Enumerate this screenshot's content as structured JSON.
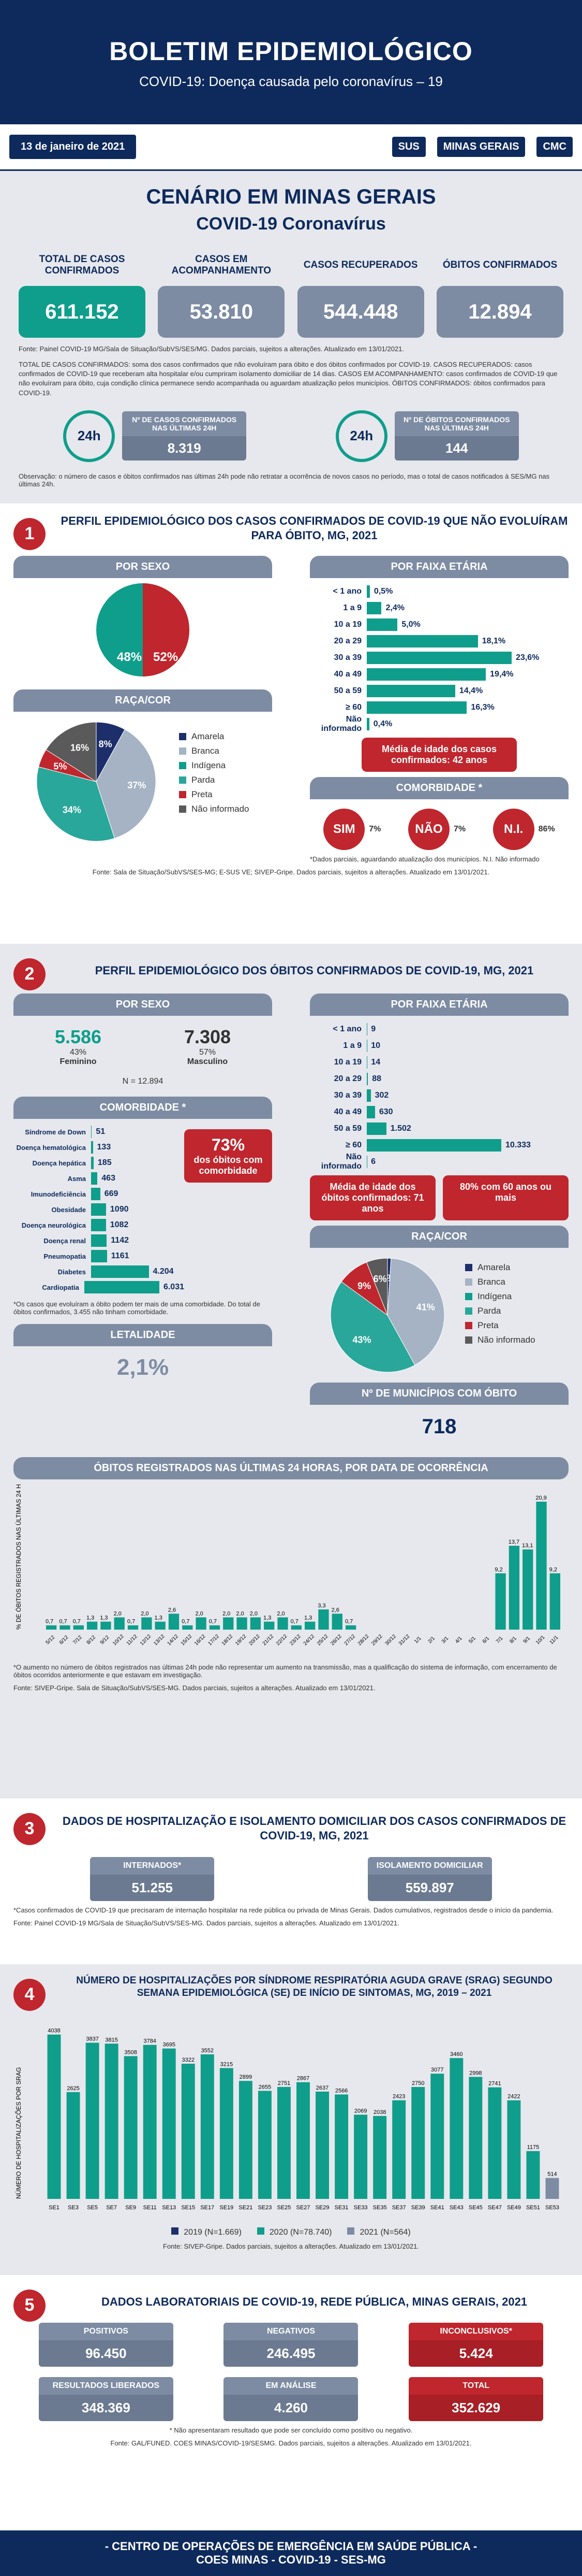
{
  "header": {
    "title": "BOLETIM EPIDEMIOLÓGICO",
    "subtitle": "COVID-19: Doença causada pelo coronavírus – 19"
  },
  "date": "13 de janeiro de 2021",
  "logos": {
    "sus": "SUS",
    "mg": "MINAS GERAIS",
    "cmc": "CMC"
  },
  "intro": {
    "title": "CENÁRIO EM MINAS GERAIS",
    "subtitle": "COVID-19 Coronavírus",
    "kpis": [
      {
        "label": "TOTAL DE CASOS CONFIRMADOS",
        "value": "611.152"
      },
      {
        "label": "CASOS EM ACOMPANHAMENTO",
        "value": "53.810"
      },
      {
        "label": "CASOS RECUPERADOS",
        "value": "544.448"
      },
      {
        "label": "ÓBITOS CONFIRMADOS",
        "value": "12.894"
      }
    ],
    "source": "Fonte: Painel COVID-19 MG/Sala de Situação/SubVS/SES/MG. Dados parciais, sujeitos a alterações. Atualizado em 13/01/2021.",
    "definitions": "TOTAL DE CASOS CONFIRMADOS: soma dos casos confirmados que não evoluíram para óbito e dos óbitos confirmados por COVID-19. CASOS RECUPERADOS: casos confirmados de COVID-19 que receberam alta hospitalar e/ou cumpriram isolamento domiciliar de 14 dias. CASOS EM ACOMPANHAMENTO: casos confirmados de COVID-19 que não evoluíram para óbito, cuja condição clínica permanece sendo acompanhada ou aguardam atualização pelos municípios. ÓBITOS CONFIRMADOS: óbitos confirmados para COVID-19.",
    "last24": [
      {
        "label": "Nº DE CASOS CONFIRMADOS NAS ÚLTIMAS 24H",
        "value": "8.319"
      },
      {
        "label": "Nº DE ÓBITOS CONFIRMADOS NAS ÚLTIMAS 24H",
        "value": "144"
      }
    ],
    "clock": "24h",
    "obs": "Observação: o número de casos e óbitos confirmados nas últimas 24h pode não retratar a ocorrência de novos casos no período, mas o total de casos notificados à SES/MG nas últimas 24h."
  },
  "s1": {
    "num": "1",
    "title": "PERFIL EPIDEMIOLÓGICO DOS CASOS CONFIRMADOS DE COVID-19 QUE NÃO EVOLUÍRAM PARA ÓBITO, MG, 2021",
    "sexo_tab": "POR SEXO",
    "fem": "48%",
    "masc": "52%",
    "faixa_tab": "POR FAIXA ETÁRIA",
    "raca_tab": "RAÇA/COR",
    "media": "Média de idade dos casos confirmados: 42 anos",
    "comorb_tab": "COMORBIDADE *",
    "comorb": [
      {
        "k": "SIM",
        "v": "7%"
      },
      {
        "k": "NÃO",
        "v": "7%"
      },
      {
        "k": "N.I.",
        "v": "86%"
      }
    ],
    "comorb_note": "*Dados parciais, aguardando atualização dos municípios. N.I. Não informado",
    "source": "Fonte: Sala de Situação/SubVS/SES-MG; E-SUS VE; SIVEP-Gripe. Dados parciais, sujeitos a alterações. Atualizado em 13/01/2021."
  },
  "s2": {
    "num": "2",
    "title": "PERFIL EPIDEMIOLÓGICO DOS ÓBITOS CONFIRMADOS DE COVID-19, MG, 2021",
    "sexo_tab": "POR SEXO",
    "fem_n": "5.586",
    "fem_p": "43%",
    "fem_l": "Feminino",
    "masc_n": "7.308",
    "masc_p": "57%",
    "masc_l": "Masculino",
    "total": "N = 12.894",
    "faixa_tab": "POR FAIXA ETÁRIA",
    "media": "Média de idade dos óbitos confirmados: 71 anos",
    "pct60": "80% com 60 anos ou mais",
    "comorb_tab": "COMORBIDADE *",
    "comorb_pct": "73%",
    "comorb_pct_l": "dos óbitos com comorbidade",
    "comorb_note": "*Os casos que evoluíram a óbito podem ter mais de uma comorbidade. Do total de óbitos confirmados, 3.455 não tinham comorbidade.",
    "raca_tab": "RAÇA/COR",
    "letal_tab": "LETALIDADE",
    "letal": "2,1%",
    "mun_tab": "Nº DE MUNICÍPIOS COM ÓBITO",
    "mun": "718",
    "obitos24_tab": "ÓBITOS REGISTRADOS NAS ÚLTIMAS 24 HORAS, POR DATA DE OCORRÊNCIA",
    "obitos24_note": "*O aumento no número de óbitos registrados nas últimas 24h pode não representar um aumento na transmissão, mas a qualificação do sistema de informação, com encerramento de óbitos ocorridos anteriormente e que estavam em investigação.",
    "source": "Fonte: SIVEP-Gripe. Sala de Situação/SubVS/SES-MG. Dados parciais, sujeitos a alterações. Atualizado em 13/01/2021."
  },
  "s3": {
    "num": "3",
    "title": "DADOS DE HOSPITALIZAÇÃO E ISOLAMENTO DOMICILIAR DOS CASOS CONFIRMADOS DE COVID-19, MG, 2021",
    "intern_l": "INTERNADOS*",
    "intern_v": "51.255",
    "isol_l": "ISOLAMENTO DOMICILIAR",
    "isol_v": "559.897",
    "note": "*Casos confirmados de COVID-19 que precisaram de internação hospitalar na rede pública ou privada de Minas Gerais. Dados cumulativos, registrados desde o início da pandemia.",
    "source": "Fonte: Painel COVID-19 MG/Sala de Situação/SubVS/SES-MG. Dados parciais, sujeitos a alterações. Atualizado em 13/01/2021."
  },
  "s4": {
    "num": "4",
    "title": "NÚMERO DE HOSPITALIZAÇÕES POR SÍNDROME RESPIRATÓRIA AGUDA GRAVE (SRAG) SEGUNDO SEMANA EPIDEMIOLÓGICA (SE) DE INÍCIO DE SINTOMAS, MG, 2019 – 2021",
    "ylabel": "NÚMERO DE HOSPITALIZAÇÕES POR SRAG",
    "legend": [
      "2019 (N=1.669)",
      "2020 (N=78.740)",
      "2021 (N=564)"
    ],
    "source": "Fonte: SIVEP-Gripe. Dados parciais, sujeitos a alterações. Atualizado em 13/01/2021."
  },
  "s5": {
    "num": "5",
    "title": "DADOS LABORATORIAIS DE COVID-19, REDE PÚBLICA, MINAS GERAIS, 2021",
    "boxes": [
      {
        "label": "POSITIVOS",
        "value": "96.450"
      },
      {
        "label": "NEGATIVOS",
        "value": "246.495"
      },
      {
        "label": "INCONCLUSIVOS*",
        "value": "5.424"
      },
      {
        "label": "RESULTADOS LIBERADOS",
        "value": "348.369"
      },
      {
        "label": "EM ANÁLISE",
        "value": "4.260"
      },
      {
        "label": "TOTAL",
        "value": "352.629"
      }
    ],
    "note": "* Não apresentaram resultado que pode ser concluído como positivo ou negativo.",
    "source": "Fonte: GAL/FUNED. COES MINAS/COVID-19/SESMG. Dados parciais, sujeitos a alterações. Atualizado em 13/01/2021."
  },
  "footer": {
    "line1": "- CENTRO DE OPERAÇÕES DE EMERGÊNCIA EM SAÚDE PÚBLICA -",
    "line2": "COES MINAS - COVID-19 - SES-MG"
  },
  "chart_data": [
    {
      "type": "bar",
      "title": "POR FAIXA ETÁRIA (casos)",
      "categories": [
        "< 1 ano",
        "1 a 9",
        "10 a 19",
        "20 a 29",
        "30 a 39",
        "40 a 49",
        "50 a 59",
        "≥ 60",
        "Não informado"
      ],
      "values": [
        0.5,
        2.4,
        5.0,
        18.1,
        23.6,
        19.4,
        14.4,
        16.3,
        0.4
      ],
      "labels": [
        "0,5%",
        "2,4%",
        "5,0%",
        "18,1%",
        "23,6%",
        "19,4%",
        "14,4%",
        "16,3%",
        "0,4%"
      ]
    },
    {
      "type": "pie",
      "title": "RAÇA/COR (casos)",
      "categories": [
        "Amarela",
        "Branca",
        "Indígena",
        "Parda",
        "Preta",
        "Não informado"
      ],
      "values": [
        8,
        37,
        0,
        34,
        5,
        16
      ],
      "labels": [
        "8%",
        "37%",
        "0%",
        "34%",
        "5%",
        "16%"
      ],
      "colors": [
        "#1c2f6b",
        "#a5b3c4",
        "#0f9e8b",
        "#2aa79b",
        "#c0262d",
        "#5a5a5a"
      ]
    },
    {
      "type": "bar",
      "title": "POR FAIXA ETÁRIA (óbitos)",
      "categories": [
        "< 1 ano",
        "1 a 9",
        "10 a 19",
        "20 a 29",
        "30 a 39",
        "40 a 49",
        "50 a 59",
        "≥ 60",
        "Não informado"
      ],
      "values": [
        9,
        10,
        14,
        88,
        302,
        630,
        1502,
        10333,
        6
      ],
      "labels": [
        "9",
        "10",
        "14",
        "88",
        "302",
        "630",
        "1.502",
        "10.333",
        "6"
      ]
    },
    {
      "type": "bar",
      "title": "COMORBIDADE (óbitos)",
      "categories": [
        "Síndrome de Down",
        "Doença hematológica",
        "Doença hepática",
        "Asma",
        "Imunodeficiência",
        "Obesidade",
        "Doença neurológica",
        "Doença renal",
        "Pneumopatia",
        "Diabetes",
        "Cardiopatia"
      ],
      "values": [
        51,
        133,
        185,
        463,
        669,
        1090,
        1082,
        1142,
        1161,
        4204,
        6031
      ],
      "labels": [
        "51",
        "133",
        "185",
        "463",
        "669",
        "1090",
        "1082",
        "1142",
        "1161",
        "4.204",
        "6.031"
      ]
    },
    {
      "type": "pie",
      "title": "RAÇA/COR (óbitos)",
      "categories": [
        "Amarela",
        "Branca",
        "Indígena",
        "Parda",
        "Preta",
        "Não informado"
      ],
      "values": [
        1,
        41,
        0,
        43,
        9,
        6
      ],
      "labels": [
        "1%",
        "41%",
        "0%",
        "43%",
        "9%",
        "6%"
      ],
      "colors": [
        "#1c2f6b",
        "#a5b3c4",
        "#0f9e8b",
        "#2aa79b",
        "#c0262d",
        "#5a5a5a"
      ]
    },
    {
      "type": "bar",
      "title": "ÓBITOS REGISTRADOS NAS ÚLTIMAS 24 HORAS",
      "ylabel": "% DE ÓBITOS REGISTRADOS NAS ÚLTIMAS 24 H",
      "categories": [
        "5/12",
        "6/12",
        "7/12",
        "8/12",
        "9/12",
        "10/12",
        "11/12",
        "12/12",
        "13/12",
        "14/12",
        "15/12",
        "16/12",
        "17/12",
        "18/12",
        "19/12",
        "20/12",
        "21/12",
        "22/12",
        "23/12",
        "24/12",
        "25/12",
        "26/12",
        "27/12",
        "28/12",
        "29/12",
        "30/12",
        "31/12",
        "1/1",
        "2/1",
        "3/1",
        "4/1",
        "5/1",
        "6/1",
        "7/1",
        "8/1",
        "9/1",
        "10/1",
        "11/1"
      ],
      "values": [
        0.7,
        0.7,
        0.7,
        1.3,
        1.3,
        2.0,
        0.7,
        2.0,
        1.3,
        2.6,
        0.7,
        2.0,
        0.7,
        2.0,
        2.0,
        2.0,
        1.3,
        2.0,
        0.7,
        1.3,
        3.3,
        2.6,
        0.7,
        0,
        0,
        0,
        0,
        0,
        0,
        0,
        0,
        0,
        0,
        9.2,
        13.7,
        13.1,
        20.9,
        9.2
      ],
      "labels": [
        "0,7",
        "0,7",
        "0,7",
        "1,3",
        "1,3",
        "2,0",
        "0,7",
        "2,0",
        "1,3",
        "2,6",
        "0,7",
        "2,0",
        "0,7",
        "2,0",
        "2,0",
        "2,0",
        "1,3",
        "2,0",
        "0,7",
        "1,3",
        "3,3",
        "2,6",
        "0,7",
        "",
        "",
        "",
        "",
        "",
        "",
        "",
        "",
        "",
        "",
        "9,2",
        "13,7",
        "13,1",
        "20,9",
        "9,2"
      ]
    },
    {
      "type": "bar",
      "title": "HOSPITALIZAÇÕES POR SRAG",
      "categories": [
        "SE1",
        "SE3",
        "SE5",
        "SE7",
        "SE9",
        "SE11",
        "SE13",
        "SE15",
        "SE17",
        "SE19",
        "SE21",
        "SE23",
        "SE25",
        "SE27",
        "SE29",
        "SE31",
        "SE33",
        "SE35",
        "SE37",
        "SE39",
        "SE41",
        "SE43",
        "SE45",
        "SE47",
        "SE49",
        "SE51",
        "SE53"
      ],
      "series": [
        {
          "name": "2019 (N=1.669)",
          "values": [
            0,
            0,
            0,
            0,
            0,
            0,
            0,
            0,
            0,
            0,
            0,
            0,
            0,
            0,
            0,
            0,
            0,
            0,
            0,
            0,
            0,
            0,
            0,
            0,
            0,
            0,
            0
          ]
        },
        {
          "name": "2020 (N=78.740)",
          "values": [
            4038,
            2625,
            3837,
            3815,
            3508,
            3784,
            3695,
            3322,
            3552,
            3215,
            2899,
            2655,
            2751,
            2867,
            2637,
            2566,
            2069,
            2038,
            2423,
            2750,
            3077,
            3460,
            2998,
            2741,
            2422,
            1175,
            0
          ]
        },
        {
          "name": "2021 (N=564)",
          "values": [
            0,
            0,
            0,
            0,
            0,
            0,
            0,
            0,
            0,
            0,
            0,
            0,
            0,
            0,
            0,
            0,
            0,
            0,
            0,
            0,
            0,
            0,
            0,
            0,
            0,
            0,
            514
          ]
        }
      ]
    }
  ]
}
